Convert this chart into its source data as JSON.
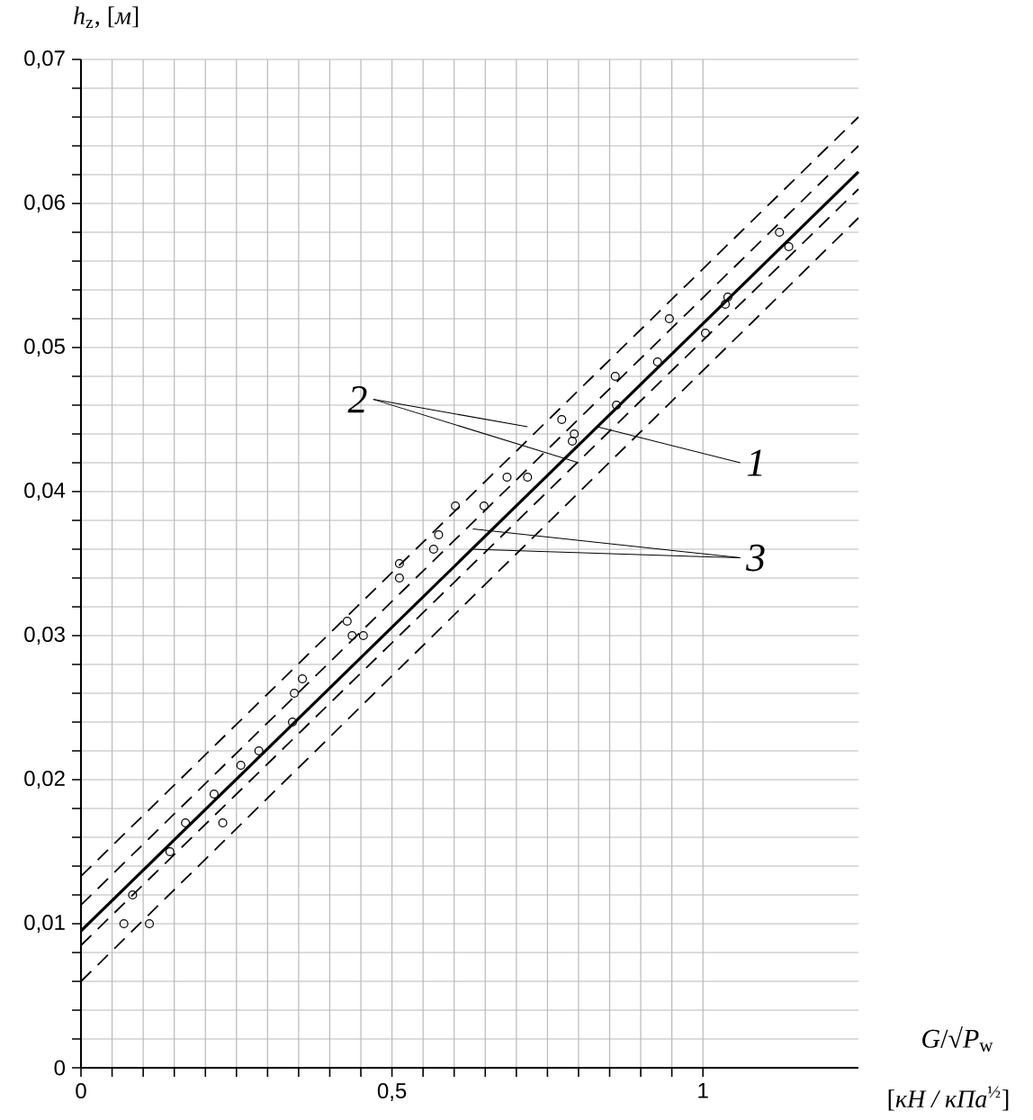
{
  "chart_data": {
    "type": "scatter",
    "ylabel": "*h*$_{z}$, [*м*]",
    "xlabel": "*G*/√*P*$_{w}$",
    "xlim": [
      0,
      1.25
    ],
    "ylim": [
      0,
      0.07
    ],
    "xticks": [
      0,
      {
        "value": 0.5,
        "label": "0,5"
      },
      1
    ],
    "yticks": [
      0,
      {
        "value": 0.01,
        "label": "0,01"
      },
      {
        "value": 0.02,
        "label": "0,02"
      },
      {
        "value": 0.03,
        "label": "0,03"
      },
      {
        "value": 0.04,
        "label": "0,04"
      },
      {
        "value": 0.05,
        "label": "0,05"
      },
      {
        "value": 0.06,
        "label": "0,06"
      },
      {
        "value": 0.07,
        "label": "0,07"
      }
    ],
    "grid": true,
    "series": [
      {
        "marker": "circle",
        "color": "#000000",
        "x": [
          0.069,
          0.11,
          0.083,
          0.143,
          0.168,
          0.214,
          0.228,
          0.257,
          0.286,
          0.34,
          0.343,
          0.356,
          0.428,
          0.436,
          0.454,
          0.512,
          0.512,
          0.567,
          0.575,
          0.602,
          0.648,
          0.685,
          0.718,
          0.773,
          0.79,
          0.793,
          0.859,
          0.861,
          0.927,
          0.946,
          1.004,
          1.036,
          1.04,
          1.123,
          1.138
        ],
        "values": [
          0.01,
          0.01,
          0.012,
          0.015,
          0.017,
          0.019,
          0.017,
          0.021,
          0.022,
          0.024,
          0.026,
          0.027,
          0.031,
          0.03,
          0.03,
          0.034,
          0.035,
          0.036,
          0.037,
          0.039,
          0.039,
          0.041,
          0.041,
          0.045,
          0.0435,
          0.044,
          0.048,
          0.046,
          0.049,
          0.052,
          0.051,
          0.053,
          0.0535,
          0.058,
          0.057
        ]
      },
      {
        "type": "line",
        "line_style": "solid",
        "color": "#000000",
        "x": [
          0,
          1.25
        ],
        "values": [
          0.0095,
          0.0622
        ]
      },
      {
        "type": "line",
        "line_style": "dashed",
        "color": "#000000",
        "x": [
          0,
          1.25
        ],
        "values": [
          0.0133,
          0.066
        ]
      },
      {
        "type": "line",
        "line_style": "dashed",
        "color": "#000000",
        "x": [
          0,
          1.25
        ],
        "values": [
          0.0113,
          0.064
        ]
      },
      {
        "type": "line",
        "line_style": "dashed",
        "color": "#000000",
        "x": [
          0,
          1.25
        ],
        "values": [
          0.0085,
          0.061
        ]
      },
      {
        "type": "line",
        "line_style": "dashed",
        "color": "#000000",
        "x": [
          0,
          1.25
        ],
        "values": [
          0.006,
          0.059
        ]
      }
    ],
    "annotations": [
      {
        "text": "1",
        "x": 0.83,
        "y": 0.0445
      },
      {
        "text": "2",
        "x": 0.718,
        "y": 0.0445
      },
      {
        "text": "3",
        "x": 0.627,
        "y": 0.036
      },
      "[*кН / кПа*$^{½}$]"
    ]
  }
}
